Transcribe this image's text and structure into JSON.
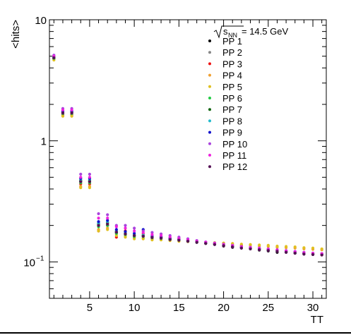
{
  "chart_data": {
    "type": "scatter",
    "title": "",
    "xlabel": "TT",
    "ylabel": "<hits>",
    "xlim": [
      0.5,
      31.5
    ],
    "ylim": [
      0.05,
      10
    ],
    "yscale": "log",
    "grid": false,
    "legend_placement": "top-right",
    "legend_header": {
      "symbol": "√s",
      "subscript": "NN",
      "text": " = 14.5 GeV"
    },
    "x_ticks": [
      5,
      10,
      15,
      20,
      25,
      30
    ],
    "x_tick_labels": [
      "5",
      "10",
      "15",
      "20",
      "25",
      "30"
    ],
    "y_ticks": [
      0.1,
      1,
      10
    ],
    "y_tick_labels": [
      {
        "base": "10",
        "exp": "−1"
      },
      {
        "base": "1",
        "exp": ""
      },
      {
        "base": "10",
        "exp": ""
      }
    ],
    "x": [
      1,
      2,
      3,
      4,
      5,
      6,
      7,
      8,
      9,
      10,
      11,
      12,
      13,
      14,
      15,
      16,
      17,
      18,
      19,
      20,
      21,
      22,
      23,
      24,
      25,
      26,
      27,
      28,
      29,
      30,
      31
    ],
    "series": [
      {
        "name": "PP 1",
        "color": "#000000",
        "values": [
          4.8,
          1.7,
          1.7,
          0.46,
          0.46,
          0.2,
          0.2,
          0.175,
          0.17,
          0.165,
          0.165,
          0.16,
          0.16,
          0.155,
          0.155,
          0.15,
          0.145,
          0.142,
          0.14,
          0.135,
          0.132,
          0.13,
          0.128,
          0.125,
          0.123,
          0.12,
          0.12,
          0.118,
          0.116,
          0.115,
          0.115
        ]
      },
      {
        "name": "PP 2",
        "color": "#888888",
        "values": [
          4.9,
          1.75,
          1.75,
          0.47,
          0.47,
          0.21,
          0.21,
          0.18,
          0.17,
          0.165,
          0.165,
          0.16,
          0.158,
          0.155,
          0.152,
          0.15,
          0.146,
          0.143,
          0.14,
          0.136,
          0.133,
          0.131,
          0.129,
          0.126,
          0.124,
          0.122,
          0.12,
          0.119,
          0.117,
          0.116,
          0.116
        ]
      },
      {
        "name": "PP 3",
        "color": "#ee1111",
        "values": [
          4.75,
          1.65,
          1.65,
          0.44,
          0.44,
          0.18,
          0.2,
          0.16,
          0.18,
          0.16,
          0.17,
          0.155,
          0.16,
          0.152,
          0.155,
          0.148,
          0.146,
          0.142,
          0.14,
          0.136,
          0.134,
          0.136,
          0.13,
          0.128,
          0.126,
          0.124,
          0.122,
          0.12,
          0.118,
          0.116,
          0.114
        ]
      },
      {
        "name": "PP 4",
        "color": "#f0a030",
        "values": [
          4.7,
          1.6,
          1.6,
          0.42,
          0.42,
          0.185,
          0.19,
          0.17,
          0.165,
          0.16,
          0.158,
          0.155,
          0.155,
          0.152,
          0.15,
          0.148,
          0.146,
          0.145,
          0.143,
          0.142,
          0.14,
          0.138,
          0.137,
          0.135,
          0.134,
          0.132,
          0.131,
          0.13,
          0.128,
          0.127,
          0.126
        ]
      },
      {
        "name": "PP 5",
        "color": "#e0c020",
        "values": [
          4.65,
          1.6,
          1.6,
          0.41,
          0.41,
          0.18,
          0.185,
          0.165,
          0.16,
          0.155,
          0.155,
          0.152,
          0.152,
          0.15,
          0.148,
          0.147,
          0.146,
          0.145,
          0.144,
          0.143,
          0.142,
          0.14,
          0.139,
          0.138,
          0.137,
          0.135,
          0.134,
          0.133,
          0.131,
          0.13,
          0.128
        ]
      },
      {
        "name": "PP 6",
        "color": "#22cc44",
        "values": [
          4.8,
          1.68,
          1.68,
          0.45,
          0.45,
          0.195,
          0.2,
          0.172,
          0.168,
          0.162,
          0.162,
          0.158,
          0.156,
          0.153,
          0.151,
          0.148,
          0.145,
          0.142,
          0.14,
          0.137,
          0.134,
          0.132,
          0.13,
          0.128,
          0.126,
          0.124,
          0.122,
          0.12,
          0.118,
          0.117,
          0.116
        ]
      },
      {
        "name": "PP 7",
        "color": "#116611",
        "values": [
          4.85,
          1.72,
          1.72,
          0.47,
          0.47,
          0.205,
          0.21,
          0.178,
          0.172,
          0.166,
          0.164,
          0.16,
          0.158,
          0.154,
          0.152,
          0.149,
          0.146,
          0.143,
          0.14,
          0.137,
          0.134,
          0.131,
          0.129,
          0.127,
          0.125,
          0.123,
          0.121,
          0.119,
          0.117,
          0.116,
          0.115
        ]
      },
      {
        "name": "PP 8",
        "color": "#22bbcc",
        "values": [
          4.9,
          1.74,
          1.74,
          0.48,
          0.48,
          0.21,
          0.215,
          0.18,
          0.174,
          0.168,
          0.166,
          0.161,
          0.159,
          0.155,
          0.153,
          0.15,
          0.147,
          0.144,
          0.141,
          0.138,
          0.135,
          0.132,
          0.13,
          0.128,
          0.126,
          0.124,
          0.122,
          0.12,
          0.118,
          0.117,
          0.116
        ]
      },
      {
        "name": "PP 9",
        "color": "#1111cc",
        "values": [
          4.95,
          1.76,
          1.76,
          0.49,
          0.49,
          0.215,
          0.22,
          0.185,
          0.178,
          0.172,
          0.185,
          0.163,
          0.161,
          0.157,
          0.154,
          0.151,
          0.148,
          0.145,
          0.142,
          0.139,
          0.136,
          0.133,
          0.131,
          0.129,
          0.127,
          0.125,
          0.123,
          0.121,
          0.119,
          0.118,
          0.117
        ]
      },
      {
        "name": "PP 10",
        "color": "#aa44dd",
        "values": [
          5.1,
          1.85,
          1.85,
          0.53,
          0.53,
          0.25,
          0.245,
          0.2,
          0.2,
          0.19,
          0.18,
          0.175,
          0.17,
          0.165,
          0.16,
          0.155,
          0.15,
          0.146,
          0.143,
          0.14,
          0.137,
          0.134,
          0.132,
          0.13,
          0.128,
          0.126,
          0.124,
          0.122,
          0.12,
          0.118,
          0.117
        ]
      },
      {
        "name": "PP 11",
        "color": "#ee22dd",
        "values": [
          5.0,
          1.8,
          1.8,
          0.5,
          0.5,
          0.23,
          0.23,
          0.195,
          0.19,
          0.18,
          0.175,
          0.168,
          0.165,
          0.16,
          0.156,
          0.152,
          0.148,
          0.145,
          0.142,
          0.139,
          0.136,
          0.133,
          0.131,
          0.129,
          0.127,
          0.125,
          0.123,
          0.121,
          0.119,
          0.118,
          0.117
        ]
      },
      {
        "name": "PP 12",
        "color": "#551155",
        "values": [
          4.85,
          1.7,
          1.7,
          0.46,
          0.46,
          0.2,
          0.205,
          0.176,
          0.17,
          0.165,
          0.163,
          0.159,
          0.157,
          0.153,
          0.151,
          0.148,
          0.145,
          0.142,
          0.139,
          0.136,
          0.133,
          0.13,
          0.128,
          0.126,
          0.124,
          0.122,
          0.12,
          0.118,
          0.116,
          0.115,
          0.114
        ]
      }
    ]
  }
}
